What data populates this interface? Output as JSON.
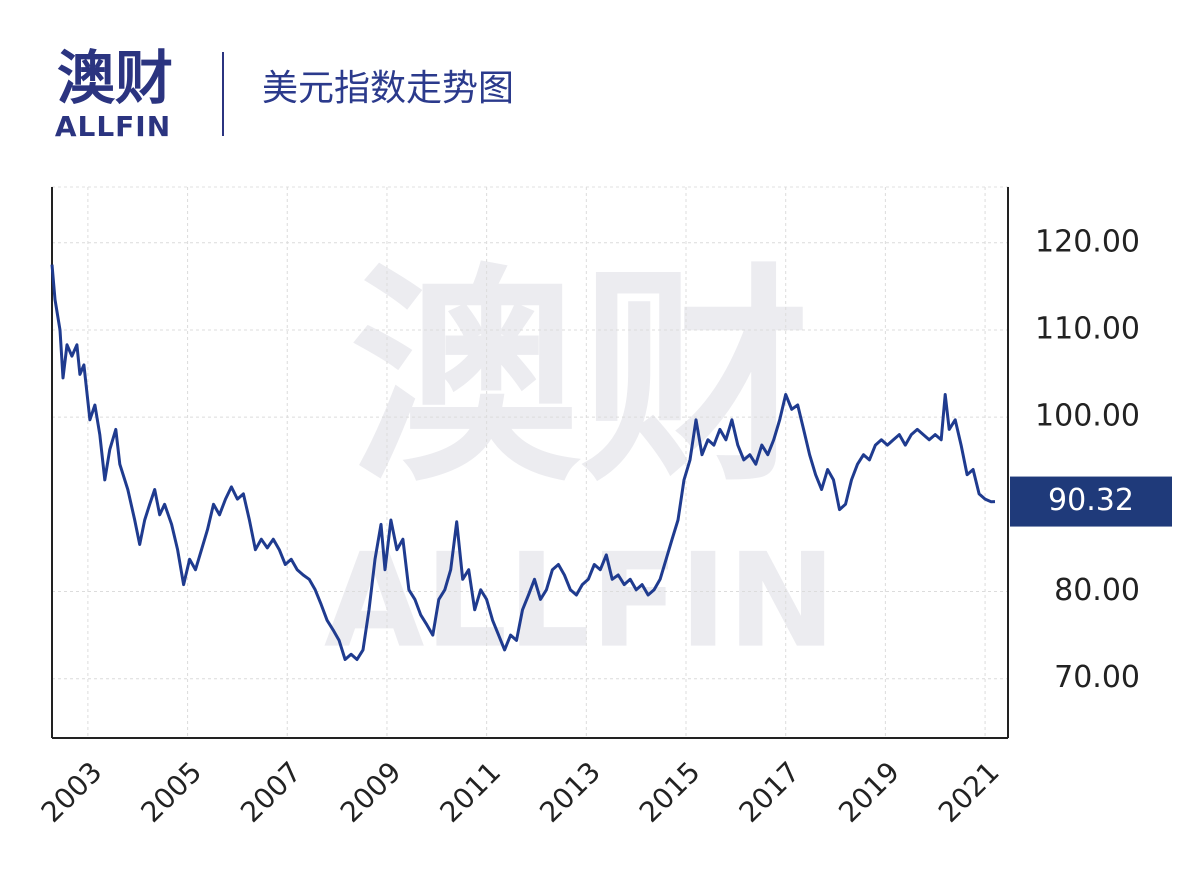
{
  "logo": {
    "name": "澳财",
    "sub": "ALLFIN"
  },
  "chart_data": {
    "type": "line",
    "title": "美元指数走势图",
    "x": [
      2002.28,
      2002.34,
      2002.44,
      2002.5,
      2002.58,
      2002.68,
      2002.78,
      2002.84,
      2002.92,
      2003.04,
      2003.14,
      2003.24,
      2003.34,
      2003.44,
      2003.56,
      2003.64,
      2003.8,
      2003.94,
      2004.04,
      2004.14,
      2004.24,
      2004.34,
      2004.44,
      2004.54,
      2004.68,
      2004.8,
      2004.92,
      2005.04,
      2005.16,
      2005.28,
      2005.4,
      2005.52,
      2005.64,
      2005.76,
      2005.88,
      2006.0,
      2006.12,
      2006.24,
      2006.36,
      2006.48,
      2006.6,
      2006.72,
      2006.84,
      2006.96,
      2007.08,
      2007.2,
      2007.32,
      2007.44,
      2007.56,
      2007.68,
      2007.8,
      2007.92,
      2008.04,
      2008.16,
      2008.28,
      2008.4,
      2008.52,
      2008.64,
      2008.76,
      2008.88,
      2008.96,
      2009.08,
      2009.2,
      2009.32,
      2009.44,
      2009.56,
      2009.68,
      2009.8,
      2009.92,
      2010.04,
      2010.16,
      2010.28,
      2010.4,
      2010.52,
      2010.64,
      2010.76,
      2010.88,
      2011.0,
      2011.12,
      2011.24,
      2011.36,
      2011.48,
      2011.6,
      2011.72,
      2011.84,
      2011.96,
      2012.08,
      2012.2,
      2012.32,
      2012.44,
      2012.56,
      2012.68,
      2012.8,
      2012.92,
      2013.04,
      2013.16,
      2013.28,
      2013.4,
      2013.52,
      2013.64,
      2013.76,
      2013.88,
      2014.0,
      2014.12,
      2014.24,
      2014.36,
      2014.48,
      2014.6,
      2014.72,
      2014.84,
      2014.96,
      2015.08,
      2015.2,
      2015.32,
      2015.44,
      2015.56,
      2015.68,
      2015.8,
      2015.92,
      2016.04,
      2016.16,
      2016.28,
      2016.4,
      2016.52,
      2016.64,
      2016.76,
      2016.88,
      2017.0,
      2017.12,
      2017.24,
      2017.36,
      2017.48,
      2017.6,
      2017.72,
      2017.84,
      2017.96,
      2018.08,
      2018.2,
      2018.32,
      2018.44,
      2018.56,
      2018.68,
      2018.8,
      2018.92,
      2019.04,
      2019.16,
      2019.28,
      2019.4,
      2019.52,
      2019.64,
      2019.76,
      2019.88,
      2020.0,
      2020.12,
      2020.2,
      2020.28,
      2020.4,
      2020.52,
      2020.64,
      2020.76,
      2020.88,
      2021.0,
      2021.12,
      2021.2
    ],
    "values": [
      117.5,
      113.5,
      110,
      104.5,
      108.3,
      107,
      108.3,
      104.9,
      106,
      99.7,
      101.4,
      98,
      92.8,
      96.3,
      98.6,
      94.6,
      91.7,
      88.2,
      85.4,
      88.2,
      90,
      91.7,
      88.8,
      90,
      87.7,
      84.8,
      80.8,
      83.7,
      82.5,
      84.8,
      87.1,
      90,
      88.8,
      90.6,
      92,
      90.6,
      91.2,
      88.2,
      84.8,
      86,
      85,
      86,
      84.8,
      83.1,
      83.7,
      82.5,
      81.9,
      81.4,
      80.2,
      78.5,
      76.7,
      75.6,
      74.4,
      72.2,
      72.8,
      72.2,
      73.3,
      77.9,
      83.7,
      87.7,
      82.5,
      88.2,
      84.8,
      86,
      80.2,
      79.1,
      77.3,
      76.2,
      75,
      79.1,
      80.2,
      82.5,
      88,
      81.4,
      82.5,
      77.9,
      80.2,
      79.1,
      76.7,
      75,
      73.3,
      75,
      74.4,
      77.9,
      79.6,
      81.4,
      79.1,
      80.2,
      82.5,
      83.1,
      81.9,
      80.2,
      79.6,
      80.8,
      81.4,
      83.1,
      82.5,
      84.2,
      81.4,
      81.9,
      80.8,
      81.4,
      80.2,
      80.8,
      79.6,
      80.2,
      81.4,
      83.7,
      86,
      88.2,
      92.8,
      95.1,
      99.7,
      95.7,
      97.4,
      96.8,
      98.6,
      97.4,
      99.7,
      96.8,
      95.1,
      95.7,
      94.6,
      96.8,
      95.7,
      97.4,
      99.7,
      102.6,
      100.9,
      101.4,
      98.6,
      95.7,
      93.4,
      91.7,
      94,
      92.8,
      89.4,
      90,
      92.8,
      94.6,
      95.7,
      95.1,
      96.8,
      97.4,
      96.8,
      97.4,
      98,
      96.8,
      98,
      98.6,
      98,
      97.4,
      98,
      97.4,
      102.6,
      98.6,
      99.7,
      96.8,
      93.4,
      94,
      91.2,
      90.6,
      90.3,
      90.32
    ],
    "color": "#1f3b8f",
    "xlim": [
      2002.28,
      2021.46
    ],
    "xticks": [
      2003,
      2005,
      2007,
      2009,
      2011,
      2013,
      2015,
      2017,
      2019,
      2021
    ],
    "ylim": [
      63.2,
      126.4
    ],
    "yticks": [
      {
        "value": 70,
        "label": "70.00"
      },
      {
        "value": 80,
        "label": "80.00"
      },
      {
        "value": 100,
        "label": "100.00"
      },
      {
        "value": 110,
        "label": "110.00"
      },
      {
        "value": 120,
        "label": "120.00"
      }
    ],
    "last_value": {
      "value": 90.32,
      "label": "90.32"
    },
    "grid": true
  }
}
